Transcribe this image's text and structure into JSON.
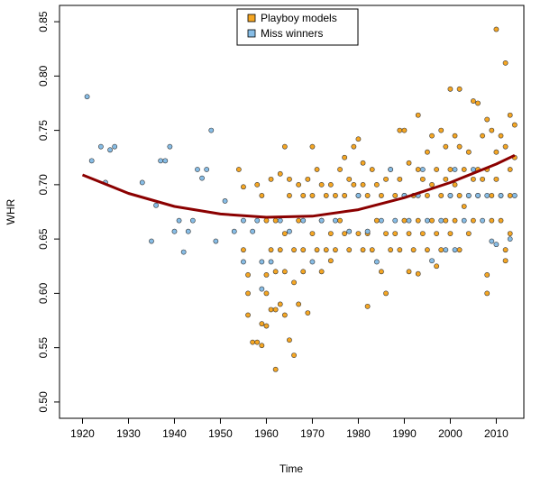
{
  "chart_data": {
    "type": "scatter",
    "xlabel": "Time",
    "ylabel": "WHR",
    "xlim": [
      1915,
      2016
    ],
    "ylim": [
      0.485,
      0.865
    ],
    "x_ticks": [
      1920,
      1930,
      1940,
      1950,
      1960,
      1970,
      1980,
      1990,
      2000,
      2010
    ],
    "y_ticks": [
      0.5,
      0.55,
      0.6,
      0.65,
      0.7,
      0.75,
      0.8,
      0.85
    ],
    "grid": false,
    "legend_position": "top-center",
    "series": [
      {
        "name": "Playboy models",
        "color": "#f5a623",
        "points": [
          [
            1954,
            0.714
          ],
          [
            1955,
            0.698
          ],
          [
            1955,
            0.64
          ],
          [
            1956,
            0.617
          ],
          [
            1956,
            0.6
          ],
          [
            1956,
            0.58
          ],
          [
            1957,
            0.555
          ],
          [
            1958,
            0.555
          ],
          [
            1958,
            0.7
          ],
          [
            1959,
            0.572
          ],
          [
            1959,
            0.552
          ],
          [
            1959,
            0.69
          ],
          [
            1960,
            0.57
          ],
          [
            1960,
            0.6
          ],
          [
            1960,
            0.617
          ],
          [
            1960,
            0.667
          ],
          [
            1961,
            0.705
          ],
          [
            1961,
            0.64
          ],
          [
            1961,
            0.585
          ],
          [
            1962,
            0.53
          ],
          [
            1962,
            0.585
          ],
          [
            1962,
            0.667
          ],
          [
            1962,
            0.62
          ],
          [
            1963,
            0.59
          ],
          [
            1963,
            0.64
          ],
          [
            1963,
            0.71
          ],
          [
            1964,
            0.735
          ],
          [
            1964,
            0.655
          ],
          [
            1964,
            0.62
          ],
          [
            1964,
            0.58
          ],
          [
            1965,
            0.557
          ],
          [
            1965,
            0.705
          ],
          [
            1965,
            0.69
          ],
          [
            1966,
            0.543
          ],
          [
            1966,
            0.64
          ],
          [
            1966,
            0.61
          ],
          [
            1967,
            0.59
          ],
          [
            1967,
            0.7
          ],
          [
            1967,
            0.667
          ],
          [
            1968,
            0.69
          ],
          [
            1968,
            0.64
          ],
          [
            1968,
            0.62
          ],
          [
            1969,
            0.582
          ],
          [
            1969,
            0.705
          ],
          [
            1970,
            0.735
          ],
          [
            1970,
            0.69
          ],
          [
            1970,
            0.655
          ],
          [
            1971,
            0.714
          ],
          [
            1971,
            0.64
          ],
          [
            1972,
            0.7
          ],
          [
            1972,
            0.667
          ],
          [
            1972,
            0.62
          ],
          [
            1973,
            0.69
          ],
          [
            1973,
            0.64
          ],
          [
            1974,
            0.7
          ],
          [
            1974,
            0.655
          ],
          [
            1974,
            0.63
          ],
          [
            1975,
            0.69
          ],
          [
            1975,
            0.64
          ],
          [
            1976,
            0.714
          ],
          [
            1976,
            0.667
          ],
          [
            1977,
            0.725
          ],
          [
            1977,
            0.69
          ],
          [
            1977,
            0.655
          ],
          [
            1978,
            0.705
          ],
          [
            1978,
            0.64
          ],
          [
            1979,
            0.735
          ],
          [
            1979,
            0.7
          ],
          [
            1980,
            0.742
          ],
          [
            1980,
            0.69
          ],
          [
            1980,
            0.655
          ],
          [
            1981,
            0.72
          ],
          [
            1981,
            0.7
          ],
          [
            1981,
            0.64
          ],
          [
            1982,
            0.69
          ],
          [
            1982,
            0.588
          ],
          [
            1982,
            0.655
          ],
          [
            1983,
            0.714
          ],
          [
            1983,
            0.64
          ],
          [
            1984,
            0.7
          ],
          [
            1984,
            0.667
          ],
          [
            1985,
            0.62
          ],
          [
            1985,
            0.69
          ],
          [
            1986,
            0.705
          ],
          [
            1986,
            0.655
          ],
          [
            1986,
            0.6
          ],
          [
            1987,
            0.64
          ],
          [
            1987,
            0.714
          ],
          [
            1988,
            0.69
          ],
          [
            1988,
            0.655
          ],
          [
            1989,
            0.75
          ],
          [
            1989,
            0.705
          ],
          [
            1989,
            0.64
          ],
          [
            1990,
            0.75
          ],
          [
            1990,
            0.69
          ],
          [
            1990,
            0.667
          ],
          [
            1991,
            0.72
          ],
          [
            1991,
            0.655
          ],
          [
            1991,
            0.62
          ],
          [
            1992,
            0.69
          ],
          [
            1992,
            0.64
          ],
          [
            1993,
            0.764
          ],
          [
            1993,
            0.714
          ],
          [
            1993,
            0.667
          ],
          [
            1993,
            0.618
          ],
          [
            1994,
            0.705
          ],
          [
            1994,
            0.655
          ],
          [
            1995,
            0.73
          ],
          [
            1995,
            0.69
          ],
          [
            1995,
            0.64
          ],
          [
            1996,
            0.745
          ],
          [
            1996,
            0.7
          ],
          [
            1996,
            0.667
          ],
          [
            1997,
            0.714
          ],
          [
            1997,
            0.655
          ],
          [
            1997,
            0.625
          ],
          [
            1998,
            0.75
          ],
          [
            1998,
            0.69
          ],
          [
            1998,
            0.64
          ],
          [
            1999,
            0.735
          ],
          [
            1999,
            0.705
          ],
          [
            1999,
            0.667
          ],
          [
            2000,
            0.788
          ],
          [
            2000,
            0.714
          ],
          [
            2000,
            0.69
          ],
          [
            2000,
            0.655
          ],
          [
            2001,
            0.745
          ],
          [
            2001,
            0.7
          ],
          [
            2001,
            0.667
          ],
          [
            2002,
            0.788
          ],
          [
            2002,
            0.735
          ],
          [
            2002,
            0.69
          ],
          [
            2002,
            0.64
          ],
          [
            2003,
            0.714
          ],
          [
            2003,
            0.68
          ],
          [
            2004,
            0.73
          ],
          [
            2004,
            0.69
          ],
          [
            2004,
            0.655
          ],
          [
            2005,
            0.777
          ],
          [
            2005,
            0.705
          ],
          [
            2005,
            0.667
          ],
          [
            2006,
            0.775
          ],
          [
            2006,
            0.714
          ],
          [
            2006,
            0.69
          ],
          [
            2007,
            0.745
          ],
          [
            2007,
            0.705
          ],
          [
            2008,
            0.76
          ],
          [
            2008,
            0.617
          ],
          [
            2008,
            0.6
          ],
          [
            2008,
            0.714
          ],
          [
            2009,
            0.75
          ],
          [
            2009,
            0.69
          ],
          [
            2009,
            0.667
          ],
          [
            2010,
            0.843
          ],
          [
            2010,
            0.73
          ],
          [
            2010,
            0.705
          ],
          [
            2011,
            0.745
          ],
          [
            2011,
            0.69
          ],
          [
            2011,
            0.667
          ],
          [
            2012,
            0.812
          ],
          [
            2012,
            0.735
          ],
          [
            2012,
            0.64
          ],
          [
            2012,
            0.63
          ],
          [
            2013,
            0.764
          ],
          [
            2013,
            0.714
          ],
          [
            2013,
            0.69
          ],
          [
            2013,
            0.655
          ],
          [
            2014,
            0.755
          ],
          [
            2014,
            0.725
          ]
        ]
      },
      {
        "name": "Miss winners",
        "color": "#87bde6",
        "points": [
          [
            1921,
            0.781
          ],
          [
            1922,
            0.722
          ],
          [
            1924,
            0.735
          ],
          [
            1925,
            0.702
          ],
          [
            1926,
            0.732
          ],
          [
            1927,
            0.735
          ],
          [
            1933,
            0.702
          ],
          [
            1935,
            0.648
          ],
          [
            1936,
            0.681
          ],
          [
            1937,
            0.722
          ],
          [
            1938,
            0.722
          ],
          [
            1939,
            0.735
          ],
          [
            1940,
            0.657
          ],
          [
            1941,
            0.667
          ],
          [
            1942,
            0.638
          ],
          [
            1943,
            0.657
          ],
          [
            1944,
            0.667
          ],
          [
            1945,
            0.714
          ],
          [
            1946,
            0.706
          ],
          [
            1947,
            0.714
          ],
          [
            1948,
            0.75
          ],
          [
            1949,
            0.648
          ],
          [
            1951,
            0.685
          ],
          [
            1953,
            0.657
          ],
          [
            1955,
            0.667
          ],
          [
            1955,
            0.629
          ],
          [
            1957,
            0.657
          ],
          [
            1958,
            0.667
          ],
          [
            1959,
            0.629
          ],
          [
            1959,
            0.604
          ],
          [
            1961,
            0.629
          ],
          [
            1963,
            0.667
          ],
          [
            1965,
            0.657
          ],
          [
            1968,
            0.667
          ],
          [
            1970,
            0.629
          ],
          [
            1972,
            0.667
          ],
          [
            1975,
            0.667
          ],
          [
            1978,
            0.657
          ],
          [
            1980,
            0.69
          ],
          [
            1982,
            0.657
          ],
          [
            1984,
            0.629
          ],
          [
            1985,
            0.667
          ],
          [
            1987,
            0.714
          ],
          [
            1988,
            0.667
          ],
          [
            1990,
            0.69
          ],
          [
            1991,
            0.667
          ],
          [
            1993,
            0.69
          ],
          [
            1994,
            0.714
          ],
          [
            1995,
            0.667
          ],
          [
            1996,
            0.63
          ],
          [
            1998,
            0.667
          ],
          [
            1999,
            0.64
          ],
          [
            2000,
            0.69
          ],
          [
            2001,
            0.714
          ],
          [
            2001,
            0.64
          ],
          [
            2003,
            0.667
          ],
          [
            2004,
            0.69
          ],
          [
            2005,
            0.714
          ],
          [
            2006,
            0.69
          ],
          [
            2007,
            0.667
          ],
          [
            2008,
            0.69
          ],
          [
            2009,
            0.648
          ],
          [
            2010,
            0.645
          ],
          [
            2011,
            0.69
          ],
          [
            2013,
            0.65
          ],
          [
            2014,
            0.69
          ]
        ]
      }
    ],
    "trend_line": {
      "color": "#8b0000",
      "x": [
        1920,
        1930,
        1940,
        1950,
        1960,
        1970,
        1980,
        1990,
        2000,
        2010,
        2014
      ],
      "y": [
        0.709,
        0.692,
        0.68,
        0.673,
        0.67,
        0.671,
        0.677,
        0.688,
        0.702,
        0.719,
        0.727
      ]
    }
  }
}
